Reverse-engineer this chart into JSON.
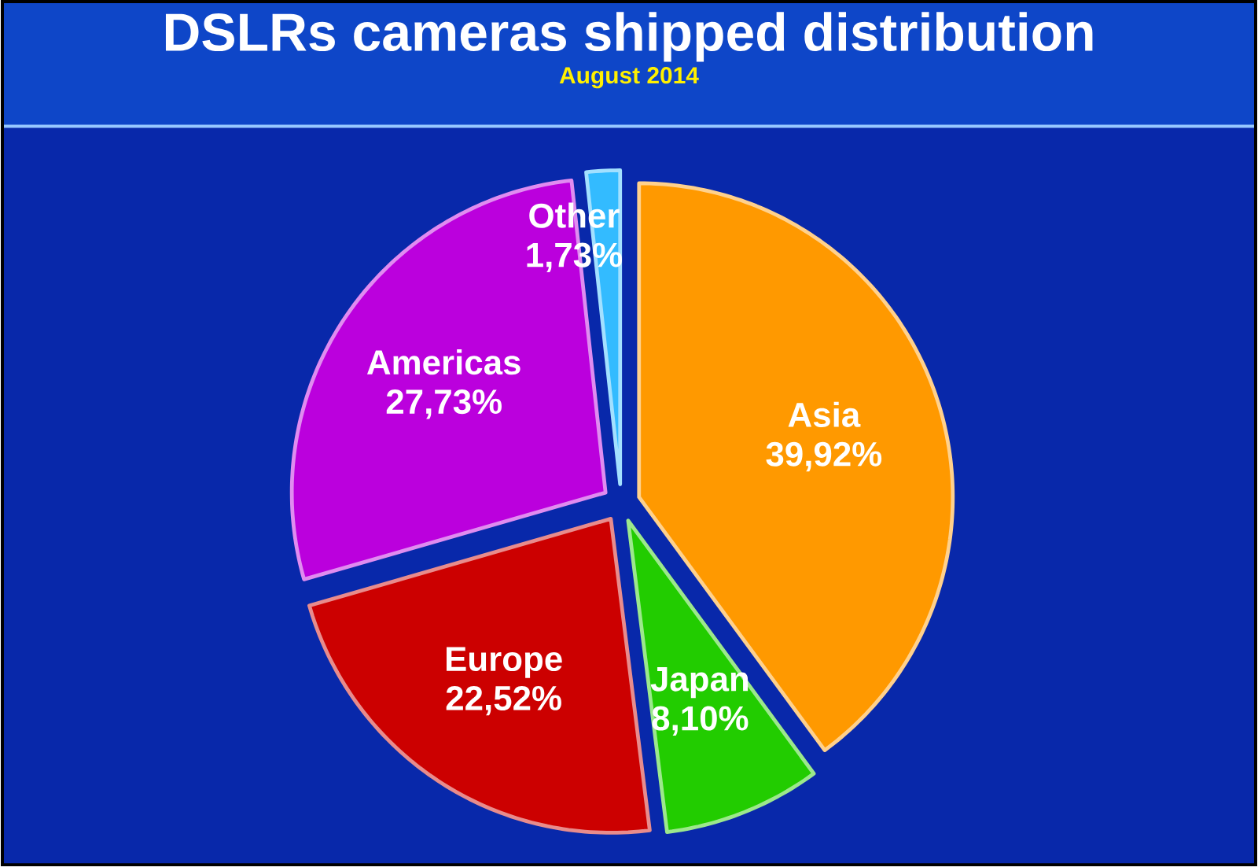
{
  "chart_data": {
    "type": "pie",
    "title": "DSLRs cameras shipped distribution",
    "subtitle": "August 2014",
    "categories": [
      "Asia",
      "Japan",
      "Europe",
      "Americas",
      "Other"
    ],
    "values": [
      39.92,
      8.1,
      22.52,
      27.73,
      1.73
    ],
    "value_labels": [
      "39,92%",
      "8,10%",
      "22,52%",
      "27,73%",
      "1,73%"
    ],
    "colors": [
      "#ff9900",
      "#22cc00",
      "#cc0000",
      "#bb00dd",
      "#33bbff"
    ]
  }
}
